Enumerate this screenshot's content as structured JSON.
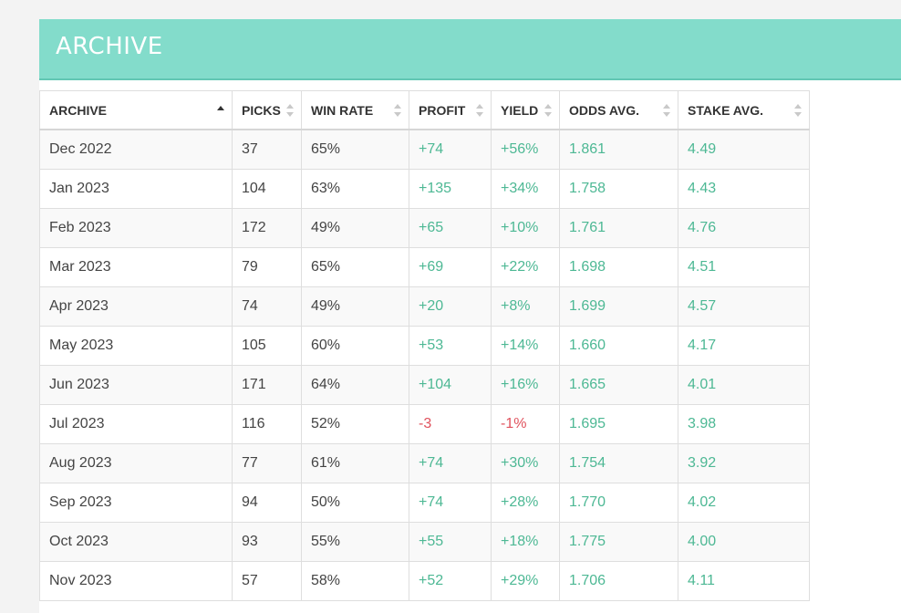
{
  "header": {
    "title": "ARCHIVE"
  },
  "table": {
    "columns": [
      {
        "label": "ARCHIVE",
        "sort": "asc"
      },
      {
        "label": "PICKS",
        "sort": "none"
      },
      {
        "label": "WIN RATE",
        "sort": "none"
      },
      {
        "label": "PROFIT",
        "sort": "none"
      },
      {
        "label": "YIELD",
        "sort": "none"
      },
      {
        "label": "ODDS AVG.",
        "sort": "none"
      },
      {
        "label": "STAKE AVG.",
        "sort": "none"
      }
    ],
    "rows": [
      {
        "month": "Dec 2022",
        "picks": "37",
        "win_rate": "65%",
        "profit": "+74",
        "yield": "+56%",
        "odds_avg": "1.861",
        "stake_avg": "4.49"
      },
      {
        "month": "Jan 2023",
        "picks": "104",
        "win_rate": "63%",
        "profit": "+135",
        "yield": "+34%",
        "odds_avg": "1.758",
        "stake_avg": "4.43"
      },
      {
        "month": "Feb 2023",
        "picks": "172",
        "win_rate": "49%",
        "profit": "+65",
        "yield": "+10%",
        "odds_avg": "1.761",
        "stake_avg": "4.76"
      },
      {
        "month": "Mar 2023",
        "picks": "79",
        "win_rate": "65%",
        "profit": "+69",
        "yield": "+22%",
        "odds_avg": "1.698",
        "stake_avg": "4.51"
      },
      {
        "month": "Apr 2023",
        "picks": "74",
        "win_rate": "49%",
        "profit": "+20",
        "yield": "+8%",
        "odds_avg": "1.699",
        "stake_avg": "4.57"
      },
      {
        "month": "May 2023",
        "picks": "105",
        "win_rate": "60%",
        "profit": "+53",
        "yield": "+14%",
        "odds_avg": "1.660",
        "stake_avg": "4.17"
      },
      {
        "month": "Jun 2023",
        "picks": "171",
        "win_rate": "64%",
        "profit": "+104",
        "yield": "+16%",
        "odds_avg": "1.665",
        "stake_avg": "4.01"
      },
      {
        "month": "Jul 2023",
        "picks": "116",
        "win_rate": "52%",
        "profit": "-3",
        "yield": "-1%",
        "odds_avg": "1.695",
        "stake_avg": "3.98"
      },
      {
        "month": "Aug 2023",
        "picks": "77",
        "win_rate": "61%",
        "profit": "+74",
        "yield": "+30%",
        "odds_avg": "1.754",
        "stake_avg": "3.92"
      },
      {
        "month": "Sep 2023",
        "picks": "94",
        "win_rate": "50%",
        "profit": "+74",
        "yield": "+28%",
        "odds_avg": "1.770",
        "stake_avg": "4.02"
      },
      {
        "month": "Oct 2023",
        "picks": "93",
        "win_rate": "55%",
        "profit": "+55",
        "yield": "+18%",
        "odds_avg": "1.775",
        "stake_avg": "4.00"
      },
      {
        "month": "Nov 2023",
        "picks": "57",
        "win_rate": "58%",
        "profit": "+52",
        "yield": "+29%",
        "odds_avg": "1.706",
        "stake_avg": "4.11"
      }
    ]
  },
  "colors": {
    "header_bg": "#83dccb",
    "positive": "#4db894",
    "negative": "#e0525d"
  }
}
